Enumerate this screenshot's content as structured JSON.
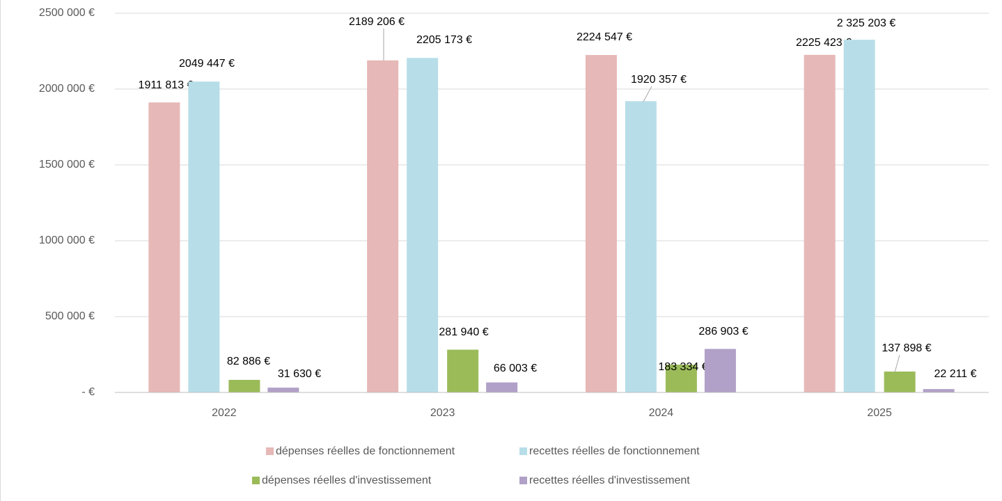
{
  "chart_data": {
    "type": "bar",
    "categories": [
      "2022",
      "2023",
      "2024",
      "2025"
    ],
    "series": [
      {
        "name": "dépenses réelles de fonctionnement",
        "color": "#e6b8b7",
        "values": [
          1911813,
          2189206,
          2224547,
          2225423
        ],
        "value_labels": [
          "1911 813 €",
          "2189 206 €",
          "2224 547 €",
          "2225 423 €"
        ]
      },
      {
        "name": "recettes réelles de fonctionnement",
        "color": "#b7dee8",
        "values": [
          2049447,
          2205173,
          1920357,
          2325203
        ],
        "value_labels": [
          "2049 447 €",
          "2205 173 €",
          "1920 357 €",
          "2 325 203 €"
        ]
      },
      {
        "name": "dépenses réelles d'investissement",
        "color": "#9bbb59",
        "values": [
          82886,
          281940,
          183334,
          137898
        ],
        "value_labels": [
          "82 886 €",
          "281 940 €",
          "183 334 €",
          "137 898 €"
        ]
      },
      {
        "name": "recettes réelles d'investissement",
        "color": "#b1a0c7",
        "values": [
          31630,
          66003,
          286903,
          22211
        ],
        "value_labels": [
          "31 630 €",
          "66 003 €",
          "286 903 €",
          "22 211 €"
        ]
      }
    ],
    "ylim": [
      0,
      2500000
    ],
    "yticks": [
      {
        "value": 0,
        "label": "-  €"
      },
      {
        "value": 500000,
        "label": "500 000 €"
      },
      {
        "value": 1000000,
        "label": "1000 000 €"
      },
      {
        "value": 1500000,
        "label": "1500 000 €"
      },
      {
        "value": 2000000,
        "label": "2000 000 €"
      },
      {
        "value": 2500000,
        "label": "2500 000 €"
      }
    ],
    "grid": true,
    "legend": "bottom"
  }
}
